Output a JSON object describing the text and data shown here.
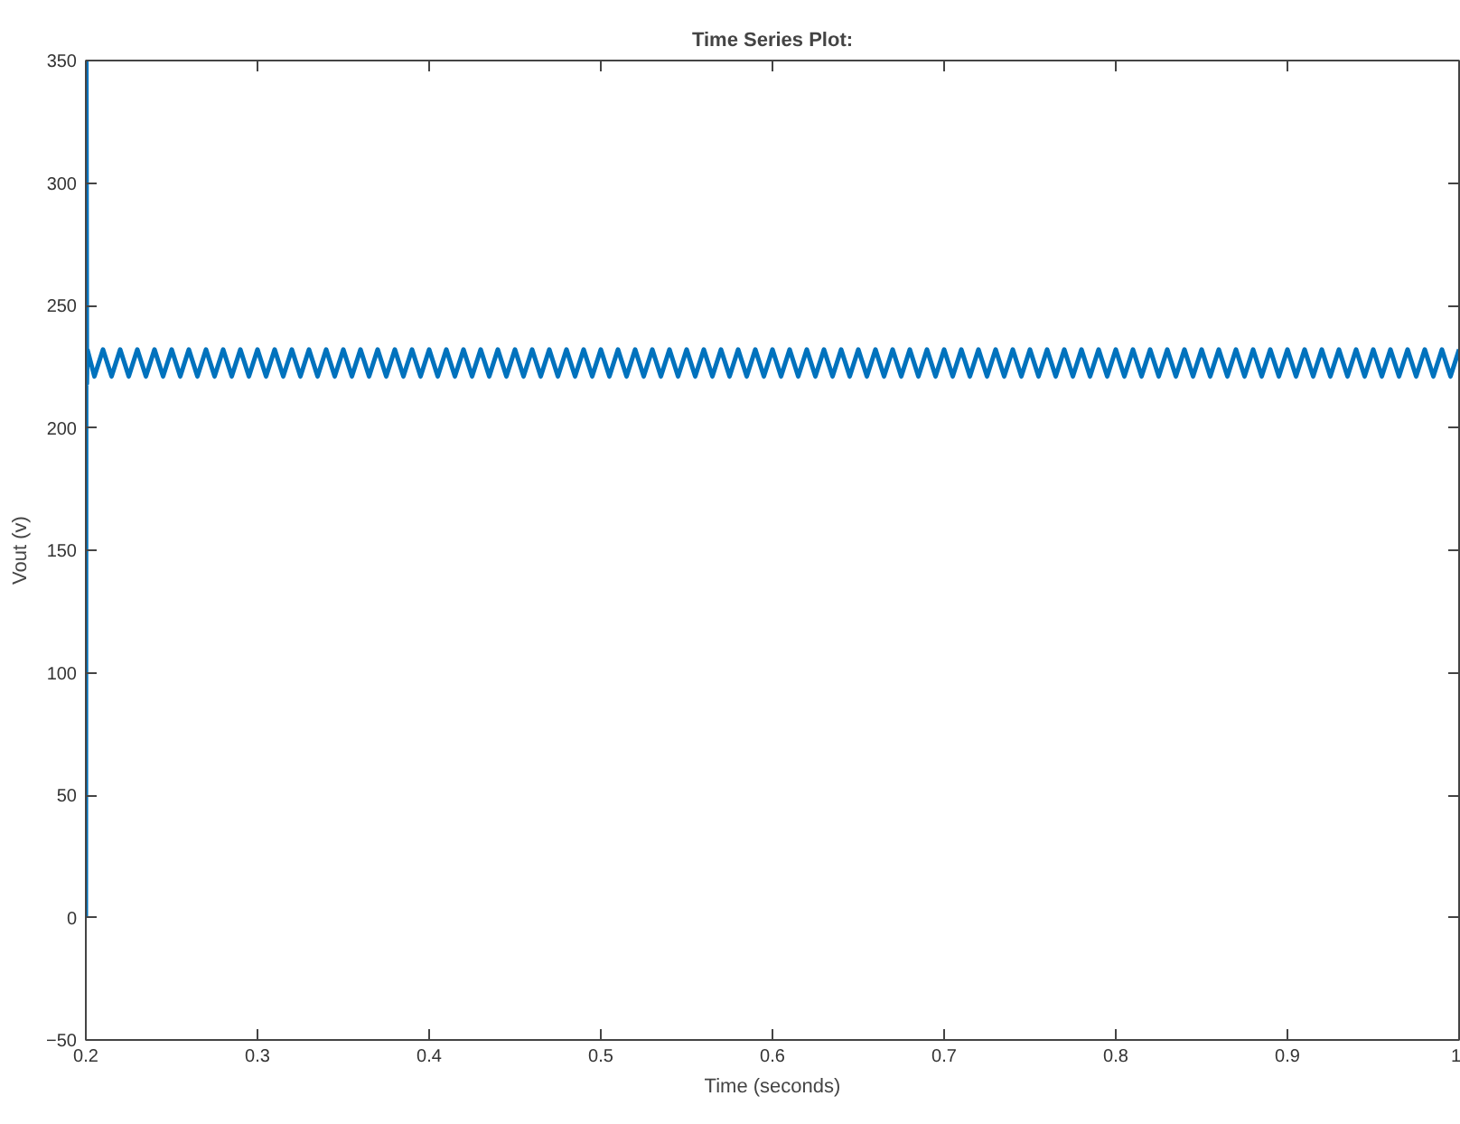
{
  "chart_data": {
    "type": "line",
    "title": "Time Series Plot:",
    "xlabel": "Time (seconds)",
    "ylabel": "Vout (v)",
    "xlim": [
      0.2,
      1.0
    ],
    "xticks": [
      0.2,
      0.3,
      0.4,
      0.5,
      0.6,
      0.7,
      0.8,
      0.9,
      1.0
    ],
    "ylim": [
      -50,
      350
    ],
    "yticks": [
      -50,
      0,
      50,
      100,
      150,
      200,
      250,
      300,
      350
    ],
    "marker": "none",
    "line_style": "solid",
    "series": [
      {
        "color": "#0072bd",
        "x": [
          0.2,
          0.2003,
          0.2006,
          0.2009,
          0.205,
          0.21,
          0.215,
          0.22,
          0.225,
          0.23,
          0.235,
          0.24,
          0.245,
          0.25,
          0.255,
          0.26,
          0.265,
          0.27,
          0.275,
          0.28,
          0.285,
          0.29,
          0.295,
          0.3,
          0.305,
          0.31,
          0.315,
          0.32,
          0.325,
          0.33,
          0.335,
          0.34,
          0.345,
          0.35,
          0.355,
          0.36,
          0.365,
          0.37,
          0.375,
          0.38,
          0.385,
          0.39,
          0.395,
          0.4,
          0.405,
          0.41,
          0.415,
          0.42,
          0.425,
          0.43,
          0.435,
          0.44,
          0.445,
          0.45,
          0.455,
          0.46,
          0.465,
          0.47,
          0.475,
          0.48,
          0.485,
          0.49,
          0.495,
          0.5,
          0.505,
          0.51,
          0.515,
          0.52,
          0.525,
          0.53,
          0.535,
          0.54,
          0.545,
          0.55,
          0.555,
          0.56,
          0.565,
          0.57,
          0.575,
          0.58,
          0.585,
          0.59,
          0.595,
          0.6,
          0.605,
          0.61,
          0.615,
          0.62,
          0.625,
          0.63,
          0.635,
          0.64,
          0.645,
          0.65,
          0.655,
          0.66,
          0.665,
          0.67,
          0.675,
          0.68,
          0.685,
          0.69,
          0.695,
          0.7,
          0.705,
          0.71,
          0.715,
          0.72,
          0.725,
          0.73,
          0.735,
          0.74,
          0.745,
          0.75,
          0.755,
          0.76,
          0.765,
          0.77,
          0.775,
          0.78,
          0.785,
          0.79,
          0.795,
          0.8,
          0.805,
          0.81,
          0.815,
          0.82,
          0.825,
          0.83,
          0.835,
          0.84,
          0.845,
          0.85,
          0.855,
          0.86,
          0.865,
          0.87,
          0.875,
          0.88,
          0.885,
          0.89,
          0.895,
          0.9,
          0.905,
          0.91,
          0.915,
          0.92,
          0.925,
          0.93,
          0.935,
          0.94,
          0.945,
          0.95,
          0.955,
          0.96,
          0.965,
          0.97,
          0.975,
          0.98,
          0.985,
          0.99,
          0.995,
          1.0
        ],
        "values": [
          0,
          350,
          218,
          232,
          221,
          232,
          221,
          232,
          221,
          232,
          221,
          232,
          221,
          232,
          221,
          232,
          221,
          232,
          221,
          232,
          221,
          232,
          221,
          232,
          221,
          232,
          221,
          232,
          221,
          232,
          221,
          232,
          221,
          232,
          221,
          232,
          221,
          232,
          221,
          232,
          221,
          232,
          221,
          232,
          221,
          232,
          221,
          232,
          221,
          232,
          221,
          232,
          221,
          232,
          221,
          232,
          221,
          232,
          221,
          232,
          221,
          232,
          221,
          232,
          221,
          232,
          221,
          232,
          221,
          232,
          221,
          232,
          221,
          232,
          221,
          232,
          221,
          232,
          221,
          232,
          221,
          232,
          221,
          232,
          221,
          232,
          221,
          232,
          221,
          232,
          221,
          232,
          221,
          232,
          221,
          232,
          221,
          232,
          221,
          232,
          221,
          232,
          221,
          232,
          221,
          232,
          221,
          232,
          221,
          232,
          221,
          232,
          221,
          232,
          221,
          232,
          221,
          232,
          221,
          232,
          221,
          232,
          221,
          232,
          221,
          232,
          221,
          232,
          221,
          232,
          221,
          232,
          221,
          232,
          221,
          232,
          221,
          232,
          221,
          232,
          221,
          232,
          221,
          232,
          221,
          232,
          221,
          232,
          221,
          232,
          221,
          232,
          221,
          232,
          221,
          232,
          221,
          232,
          221,
          232,
          221,
          232,
          221,
          232
        ]
      }
    ]
  }
}
